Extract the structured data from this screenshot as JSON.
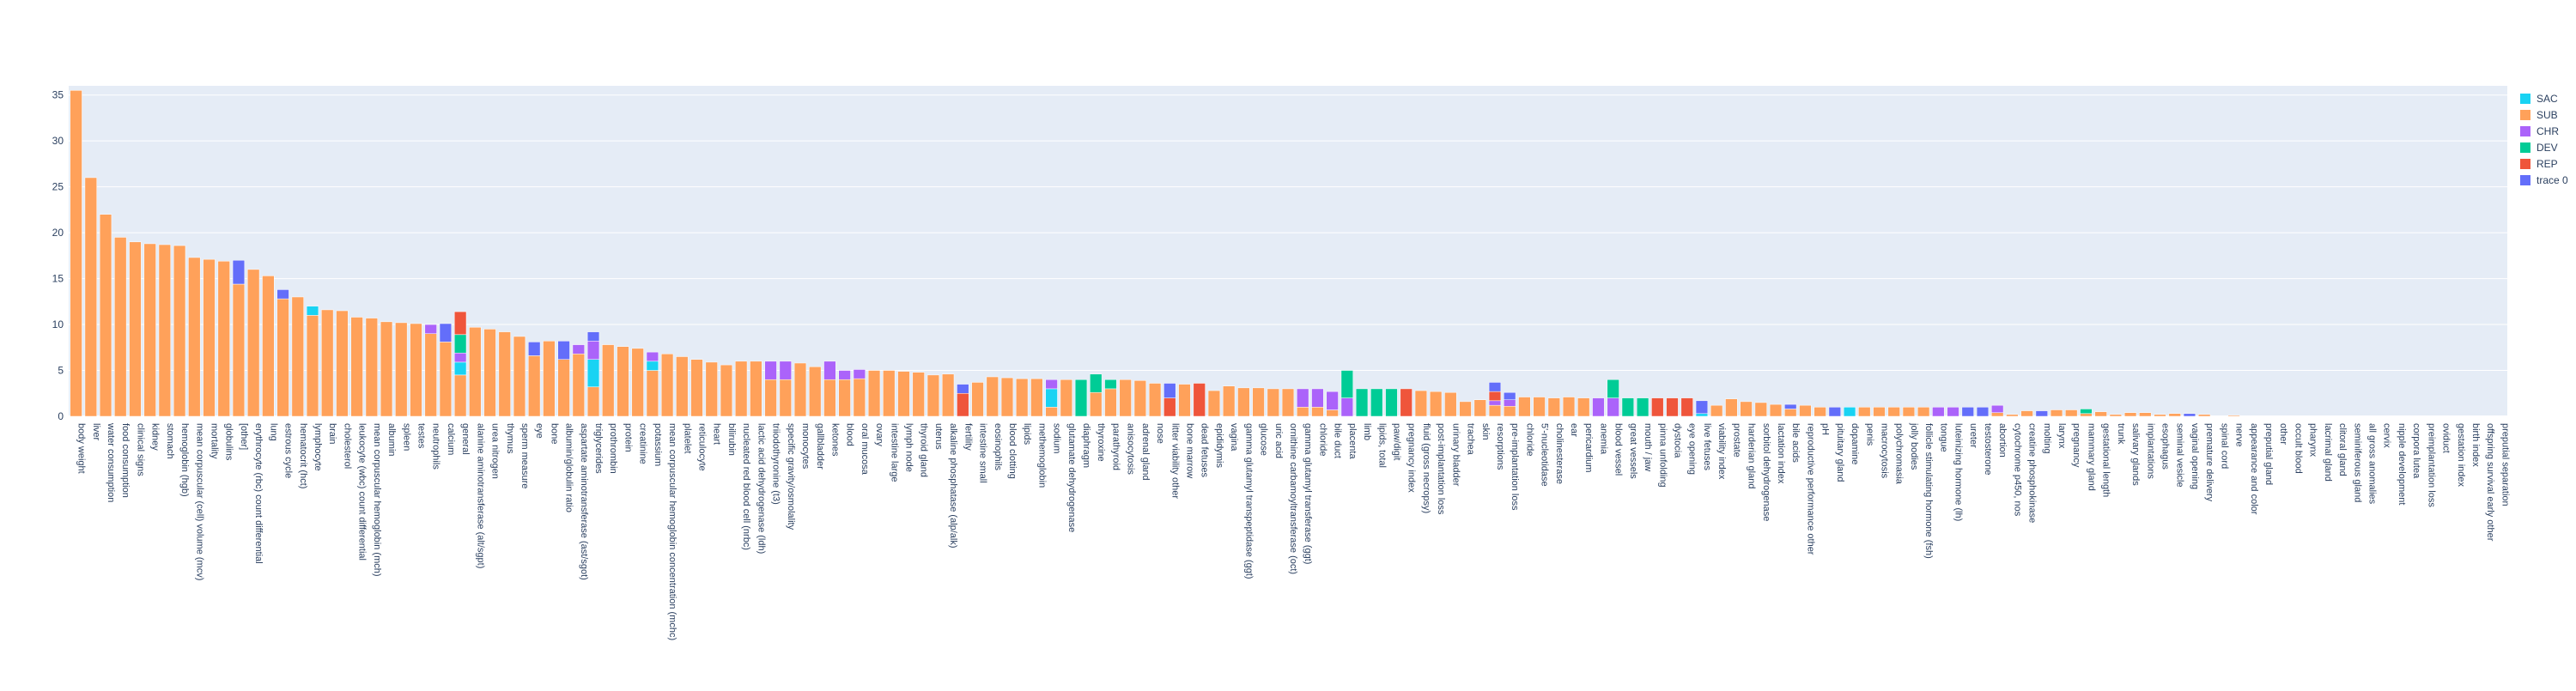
{
  "chart_data": {
    "type": "bar",
    "barmode": "stack",
    "title": "",
    "xlabel": "",
    "ylabel": "",
    "ylim": [
      0,
      36
    ],
    "yticks": [
      0,
      5,
      10,
      15,
      20,
      25,
      30,
      35
    ],
    "grid": true,
    "legend_position": "top-right",
    "background_color": "#e5ecf6",
    "series_colors": {
      "SAC": "#19d3f3",
      "SUB": "#ffa15a",
      "CHR": "#ab63fa",
      "DEV": "#00cc96",
      "REP": "#ef553b",
      "trace 0": "#636efa"
    },
    "legend": [
      "SAC",
      "SUB",
      "CHR",
      "DEV",
      "REP",
      "trace 0"
    ],
    "categories": [
      "body weight",
      "liver",
      "water consumption",
      "food consumption",
      "clinical signs",
      "kidney",
      "stomach",
      "hemoglobin (hgb)",
      "mean corpuscular (cell) volume (mcv)",
      "mortality",
      "globulins",
      "[other]",
      "erythrocyte (rbc) count differential",
      "lung",
      "estrous cycle",
      "hematocrit (hct)",
      "lymphocyte",
      "brain",
      "cholesterol",
      "leukocyte (wbc) count differential",
      "mean corpuscular hemoglobin (mch)",
      "albumin",
      "spleen",
      "testes",
      "neutrophils",
      "calcium",
      "general",
      "alanine aminotransferase (alt/sgpt)",
      "urea nitrogen",
      "thymus",
      "sperm measure",
      "eye",
      "bone",
      "albumin/globulin ratio",
      "aspartate aminotransferase (ast/sgot)",
      "triglycerides",
      "prothrombin",
      "protein",
      "creatinine",
      "potassium",
      "mean corpuscular hemoglobin concentration (mchc)",
      "platelet",
      "reticulocyte",
      "heart",
      "bilirubin",
      "nucleated red blood cell (nrbc)",
      "lactic acid dehydrogenase (ldh)",
      "triiodothyronine (t3)",
      "specific gravity/osmolality",
      "monocytes",
      "gallbladder",
      "ketones",
      "blood",
      "oral mucosa",
      "ovary",
      "intestine large",
      "lymph node",
      "thyroid gland",
      "uterus",
      "alkaline phosphatase (alp/alk)",
      "fertility",
      "intestine small",
      "eosinophils",
      "blood clotting",
      "lipids",
      "methemoglobin",
      "sodium",
      "glutamate dehydrogenase",
      "diaphragm",
      "thyroxine",
      "parathyroid",
      "anisocytosis",
      "adrenal gland",
      "nose",
      "litter viability other",
      "bone marrow",
      "dead fetuses",
      "epididymis",
      "vagina",
      "gamma glutamyl transpeptidase (ggt)",
      "glucose",
      "uric acid",
      "ornithine carbamoyltransferase (oct)",
      "gamma glutamyl transferase (ggt)",
      "chloride",
      "bile duct",
      "placenta",
      "limb",
      "lipids, total",
      "paw/digit",
      "pregnancy index",
      "fluid (gross necropsy)",
      "post-implantation loss",
      "urinary bladder",
      "trachea",
      "skin",
      "resorptions",
      "pre-implantation loss",
      "chloride",
      "5'-nucleotidase",
      "cholinesterase",
      "ear",
      "pericardium",
      "anemia",
      "blood vessel",
      "great vessels",
      "mouth / jaw",
      "pinna unfolding",
      "dystocia",
      "eye opening",
      "live fetuses",
      "viability index",
      "prostate",
      "harderian gland",
      "sorbitol dehydrogenase",
      "lactation index",
      "bile acids",
      "reproductive performance other",
      "pH",
      "pituitary gland",
      "dopamine",
      "penis",
      "macrocytosis",
      "polychromasia",
      "jolly bodies",
      "follicle stimulating hormone (fsh)",
      "tongue",
      "luteinizing hormone (lh)",
      "ureter",
      "testosterone",
      "abortion",
      "cytochrome p450, nos",
      "creatine phosphokinase",
      "molting",
      "larynx",
      "pregnancy",
      "mammary gland",
      "gestational length",
      "trunk",
      "salivary glands",
      "implantations",
      "esophagus",
      "seminal vesicle",
      "vaginal opening",
      "premature delivery",
      "spinal cord",
      "nerve",
      "appearance and color",
      "preputial gland",
      "other",
      "occult blood",
      "pharynx",
      "lacrimal gland",
      "clitoral gland",
      "seminiferous gland",
      "all gross anomalies",
      "cervix",
      "nipple development",
      "corpora lutea",
      "preimplantation loss",
      "oviduct",
      "gestation index",
      "birth index",
      "offspring survival early other",
      "preputial separation"
    ],
    "series": [
      {
        "name": "SAC",
        "values": [
          0,
          0,
          0,
          0,
          0,
          0,
          0,
          0,
          0,
          0,
          0,
          0,
          0,
          0,
          0,
          0,
          1,
          0,
          0,
          0,
          0,
          0,
          0,
          0,
          0,
          0,
          1.4,
          0,
          0,
          0,
          0,
          0,
          0,
          0,
          0,
          3,
          0,
          0,
          0,
          1,
          0,
          0,
          0,
          0,
          0,
          0,
          0,
          0,
          0,
          0,
          0,
          0,
          0,
          0,
          0,
          0,
          0,
          0,
          0,
          0,
          0,
          0,
          0,
          0,
          0,
          0,
          2,
          0,
          0,
          0,
          0,
          0,
          0,
          0,
          0,
          0,
          0,
          0,
          0,
          0,
          0,
          0,
          0,
          0,
          0,
          0,
          0,
          0,
          0,
          0,
          0,
          0,
          0,
          0,
          0,
          0,
          0,
          0,
          0,
          0,
          0,
          0,
          0,
          0,
          0,
          0,
          0,
          0,
          0,
          0,
          0.3,
          0,
          0,
          0,
          0,
          0,
          0,
          0,
          0,
          0,
          1,
          0,
          0,
          0,
          0,
          0,
          0,
          0,
          0,
          0,
          0,
          0,
          0,
          0,
          0,
          0,
          0,
          0,
          0,
          0,
          0,
          0,
          0,
          0,
          0,
          0,
          0,
          0,
          0,
          0,
          0,
          0,
          0,
          0,
          0,
          0,
          0,
          0,
          0,
          0,
          0,
          0,
          0,
          0,
          0
        ]
      },
      {
        "name": "SUB",
        "values": [
          35.5,
          26,
          22,
          19.5,
          19,
          18.8,
          18.7,
          18.6,
          17.3,
          17.1,
          16.9,
          14.4,
          16,
          15.3,
          12.8,
          13,
          11,
          11.6,
          11.5,
          10.8,
          10.7,
          10.3,
          10.2,
          10.1,
          9,
          8.1,
          4.5,
          9.7,
          9.5,
          9.2,
          8.7,
          6.6,
          8.2,
          6.2,
          6.8,
          3.2,
          7.8,
          7.6,
          7.4,
          5,
          6.8,
          6.5,
          6.2,
          5.9,
          5.6,
          6,
          6,
          4,
          4,
          5.8,
          5.4,
          4,
          4,
          4.1,
          5,
          5,
          4.9,
          4.8,
          4.5,
          4.6,
          0,
          3.7,
          4.3,
          4.2,
          4.1,
          4.1,
          1,
          4,
          0,
          2.6,
          3,
          4,
          3.9,
          3.6,
          0,
          3.5,
          0,
          2.8,
          3.3,
          3.1,
          3.1,
          3,
          3,
          1,
          1,
          0.7,
          0,
          0,
          0,
          0,
          0,
          2.8,
          2.7,
          2.6,
          1.6,
          1.8,
          1.2,
          1.1,
          2.1,
          2.1,
          2,
          2.1,
          2,
          0,
          0,
          0,
          0,
          0,
          0,
          0,
          0,
          1.2,
          1.9,
          1.6,
          1.5,
          1.3,
          0.8,
          1.2,
          1,
          0,
          0,
          1,
          1,
          1,
          1,
          1,
          0,
          0,
          0,
          0,
          0.4,
          0.2,
          0.6,
          0,
          0.7,
          0.7,
          0.3,
          0.5,
          0.2,
          0.4,
          0.4,
          0.2,
          0.3,
          0,
          0.2,
          0,
          0.1,
          0,
          0,
          0,
          0,
          0,
          0,
          0,
          0,
          0,
          0,
          0,
          0,
          0,
          0,
          0,
          0,
          0,
          0
        ]
      },
      {
        "name": "CHR",
        "values": [
          0,
          0,
          0,
          0,
          0,
          0,
          0,
          0,
          0,
          0,
          0,
          0,
          0,
          0,
          0,
          0,
          0,
          0,
          0,
          0,
          0,
          0,
          0,
          0,
          1,
          0,
          1,
          0,
          0,
          0,
          0,
          0,
          0,
          0,
          1,
          2,
          0,
          0,
          0,
          1,
          0,
          0,
          0,
          0,
          0,
          0,
          0,
          2,
          2,
          0,
          0,
          2,
          1,
          1,
          0,
          0,
          0,
          0,
          0,
          0,
          0,
          0,
          0,
          0,
          0,
          0,
          1,
          0,
          0,
          0,
          0,
          0,
          0,
          0,
          0,
          0,
          0,
          0,
          0,
          0,
          0,
          0,
          0,
          2,
          2,
          2,
          2,
          0,
          0,
          0,
          0,
          0,
          0,
          0,
          0,
          0,
          0.5,
          0.7,
          0,
          0,
          0,
          0,
          0,
          2,
          2,
          0,
          0,
          0,
          0,
          0,
          0,
          0,
          0,
          0,
          0,
          0,
          0,
          0,
          0,
          0,
          0,
          0,
          0,
          0,
          0,
          0,
          1,
          1,
          0,
          0,
          0.8,
          0,
          0,
          0,
          0,
          0,
          0,
          0,
          0,
          0,
          0,
          0,
          0,
          0,
          0,
          0,
          0,
          0,
          0,
          0,
          0,
          0,
          0,
          0,
          0,
          0,
          0,
          0,
          0,
          0,
          0,
          0,
          0,
          0,
          0
        ]
      },
      {
        "name": "DEV",
        "values": [
          0,
          0,
          0,
          0,
          0,
          0,
          0,
          0,
          0,
          0,
          0,
          0,
          0,
          0,
          0,
          0,
          0,
          0,
          0,
          0,
          0,
          0,
          0,
          0,
          0,
          0,
          2,
          0,
          0,
          0,
          0,
          0,
          0,
          0,
          0,
          0,
          0,
          0,
          0,
          0,
          0,
          0,
          0,
          0,
          0,
          0,
          0,
          0,
          0,
          0,
          0,
          0,
          0,
          0,
          0,
          0,
          0,
          0,
          0,
          0,
          0,
          0,
          0,
          0,
          0,
          0,
          0,
          0,
          4,
          2,
          1,
          0,
          0,
          0,
          0,
          0,
          0,
          0,
          0,
          0,
          0,
          0,
          0,
          0,
          0,
          0,
          3,
          3,
          3,
          3,
          0,
          0,
          0,
          0,
          0,
          0,
          0,
          0,
          0,
          0,
          0,
          0,
          0,
          0,
          2,
          2,
          2,
          0,
          0,
          0,
          0,
          0,
          0,
          0,
          0,
          0,
          0,
          0,
          0,
          0,
          0,
          0,
          0,
          0,
          0,
          0,
          0,
          0,
          0,
          0,
          0,
          0,
          0,
          0,
          0,
          0,
          0.5,
          0,
          0,
          0,
          0,
          0,
          0,
          0,
          0,
          0,
          0,
          0,
          0,
          0,
          0,
          0,
          0,
          0,
          0,
          0,
          0,
          0,
          0,
          0,
          0,
          0,
          0,
          0,
          0
        ]
      },
      {
        "name": "REP",
        "values": [
          0,
          0,
          0,
          0,
          0,
          0,
          0,
          0,
          0,
          0,
          0,
          0,
          0,
          0,
          0,
          0,
          0,
          0,
          0,
          0,
          0,
          0,
          0,
          0,
          0,
          0,
          2.5,
          0,
          0,
          0,
          0,
          0,
          0,
          0,
          0,
          0,
          0,
          0,
          0,
          0,
          0,
          0,
          0,
          0,
          0,
          0,
          0,
          0,
          0,
          0,
          0,
          0,
          0,
          0,
          0,
          0,
          0,
          0,
          0,
          0,
          2.5,
          0,
          0,
          0,
          0,
          0,
          0,
          0,
          0,
          0,
          0,
          0,
          0,
          0,
          2,
          0,
          3.6,
          0,
          0,
          0,
          0,
          0,
          0,
          0,
          0,
          0,
          0,
          0,
          0,
          0,
          3,
          0,
          0,
          0,
          0,
          0,
          1,
          0,
          0,
          0,
          0,
          0,
          0,
          0,
          0,
          0,
          0,
          2,
          2,
          2,
          0,
          0,
          0,
          0,
          0,
          0,
          0,
          0,
          0,
          0,
          0,
          0,
          0,
          0,
          0,
          0,
          0,
          0,
          0,
          0,
          0,
          0,
          0,
          0,
          0,
          0,
          0,
          0,
          0,
          0,
          0,
          0,
          0,
          0,
          0,
          0,
          0,
          0,
          0,
          0,
          0,
          0,
          0,
          0,
          0,
          0,
          0,
          0,
          0,
          0,
          0,
          0,
          0,
          0,
          0
        ]
      },
      {
        "name": "trace 0",
        "values": [
          0,
          0,
          0,
          0,
          0,
          0,
          0,
          0,
          0,
          0,
          0,
          2.6,
          0,
          0,
          1,
          0,
          0,
          0,
          0,
          0,
          0,
          0,
          0,
          0,
          0,
          2,
          0,
          0,
          0,
          0,
          0,
          1.5,
          0,
          2,
          0,
          1,
          0,
          0,
          0,
          0,
          0,
          0,
          0,
          0,
          0,
          0,
          0,
          0,
          0,
          0,
          0,
          0,
          0,
          0,
          0,
          0,
          0,
          0,
          0,
          0,
          1,
          0,
          0,
          0,
          0,
          0,
          0,
          0,
          0,
          0,
          0,
          0,
          0,
          0,
          1.6,
          0,
          0,
          0,
          0,
          0,
          0,
          0,
          0,
          0,
          0,
          0,
          0,
          0,
          0,
          0,
          0,
          0,
          0,
          0,
          0,
          0,
          1,
          0.8,
          0,
          0,
          0,
          0,
          0,
          0,
          0,
          0,
          0,
          0,
          0,
          0,
          1.4,
          0,
          0,
          0,
          0,
          0,
          0.5,
          0,
          0,
          1,
          0,
          0,
          0,
          0,
          0,
          0,
          0,
          0,
          1,
          1,
          0,
          0,
          0,
          0.6,
          0,
          0,
          0,
          0,
          0,
          0,
          0,
          0,
          0,
          0.3,
          0,
          0,
          0,
          0,
          0,
          0,
          0,
          0,
          0,
          0,
          0,
          0,
          0,
          0,
          0,
          0,
          0,
          0,
          0,
          0,
          0
        ]
      }
    ]
  }
}
